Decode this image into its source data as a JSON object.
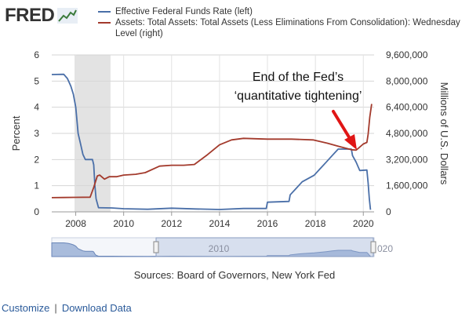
{
  "logo": {
    "text": "FRED",
    "icon": "line-graph-icon"
  },
  "colors": {
    "fedfunds": "#4a6fa8",
    "assets": "#a33a2c",
    "recession": "#e3e3e3",
    "navigator_fill": "#a9bcdc",
    "annotation_arrow": "#e01515"
  },
  "chart_data": {
    "type": "line",
    "axes": {
      "x_ticks": [
        "2008",
        "2010",
        "2012",
        "2014",
        "2016",
        "2018",
        "2020"
      ],
      "x_range": [
        2007.0,
        2020.45
      ],
      "y_left": {
        "label": "Percent",
        "range": [
          0,
          6
        ],
        "ticks": [
          "0",
          "1",
          "2",
          "3",
          "4",
          "5",
          "6"
        ]
      },
      "y_right": {
        "label": "Millions of U.S. Dollars",
        "range": [
          0,
          9600000
        ],
        "ticks": [
          "0",
          "1,600,000",
          "3,200,000",
          "4,800,000",
          "6,400,000",
          "8,000,000",
          "9,600,000"
        ]
      }
    },
    "recession": {
      "start": 2007.95,
      "end": 2009.45
    },
    "series": [
      {
        "name": "Effective Federal Funds Rate (left)",
        "axis": "left",
        "values": [
          [
            2007.0,
            5.25
          ],
          [
            2007.5,
            5.26
          ],
          [
            2007.65,
            5.1
          ],
          [
            2007.7,
            5.0
          ],
          [
            2007.8,
            4.8
          ],
          [
            2007.9,
            4.5
          ],
          [
            2008.0,
            4.0
          ],
          [
            2008.1,
            3.0
          ],
          [
            2008.2,
            2.6
          ],
          [
            2008.3,
            2.2
          ],
          [
            2008.4,
            2.0
          ],
          [
            2008.55,
            2.0
          ],
          [
            2008.7,
            2.0
          ],
          [
            2008.75,
            1.8
          ],
          [
            2008.8,
            1.0
          ],
          [
            2008.85,
            0.5
          ],
          [
            2008.95,
            0.16
          ],
          [
            2009.5,
            0.15
          ],
          [
            2010.0,
            0.12
          ],
          [
            2011.0,
            0.1
          ],
          [
            2012.0,
            0.14
          ],
          [
            2013.0,
            0.11
          ],
          [
            2014.0,
            0.09
          ],
          [
            2015.0,
            0.13
          ],
          [
            2015.95,
            0.13
          ],
          [
            2016.0,
            0.37
          ],
          [
            2016.9,
            0.4
          ],
          [
            2016.95,
            0.65
          ],
          [
            2017.2,
            0.9
          ],
          [
            2017.45,
            1.15
          ],
          [
            2017.95,
            1.4
          ],
          [
            2018.2,
            1.65
          ],
          [
            2018.45,
            1.9
          ],
          [
            2018.7,
            2.15
          ],
          [
            2018.95,
            2.4
          ],
          [
            2019.5,
            2.4
          ],
          [
            2019.55,
            2.15
          ],
          [
            2019.7,
            1.9
          ],
          [
            2019.85,
            1.58
          ],
          [
            2020.15,
            1.6
          ],
          [
            2020.2,
            1.1
          ],
          [
            2020.25,
            0.5
          ],
          [
            2020.3,
            0.08
          ]
        ]
      },
      {
        "name": "Assets: Total Assets: Total Assets (Less Eliminations From Consolidation): Wednesday Level (right)",
        "axis": "right",
        "values": [
          [
            2007.0,
            870000
          ],
          [
            2007.5,
            880000
          ],
          [
            2008.0,
            890000
          ],
          [
            2008.6,
            900000
          ],
          [
            2008.75,
            1500000
          ],
          [
            2008.9,
            2200000
          ],
          [
            2009.0,
            2250000
          ],
          [
            2009.2,
            2000000
          ],
          [
            2009.4,
            2150000
          ],
          [
            2009.7,
            2150000
          ],
          [
            2010.0,
            2250000
          ],
          [
            2010.5,
            2300000
          ],
          [
            2010.9,
            2400000
          ],
          [
            2011.5,
            2800000
          ],
          [
            2012.0,
            2850000
          ],
          [
            2012.5,
            2850000
          ],
          [
            2012.95,
            2900000
          ],
          [
            2013.5,
            3500000
          ],
          [
            2014.0,
            4100000
          ],
          [
            2014.5,
            4400000
          ],
          [
            2015.0,
            4500000
          ],
          [
            2016.0,
            4450000
          ],
          [
            2017.0,
            4450000
          ],
          [
            2017.9,
            4400000
          ],
          [
            2018.5,
            4200000
          ],
          [
            2019.0,
            4000000
          ],
          [
            2019.5,
            3800000
          ],
          [
            2019.7,
            3780000
          ],
          [
            2019.8,
            3900000
          ],
          [
            2020.0,
            4150000
          ],
          [
            2020.15,
            4250000
          ],
          [
            2020.2,
            4750000
          ],
          [
            2020.27,
            5800000
          ],
          [
            2020.35,
            6600000
          ]
        ]
      }
    ],
    "annotation": {
      "lines": [
        "End of the Fed’s",
        "‘quantitative tightening’"
      ]
    },
    "navigator": {
      "labels": [
        "2010",
        "020"
      ]
    }
  },
  "source": "Sources: Board of Governors, New York Fed",
  "links": {
    "customize": "Customize",
    "separator": "|",
    "download": "Download Data"
  }
}
